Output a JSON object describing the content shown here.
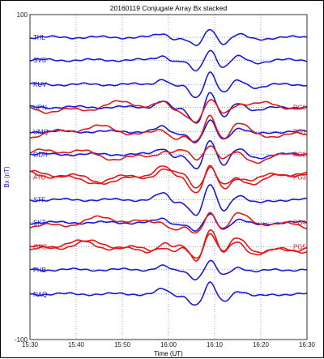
{
  "chart_data": {
    "type": "line",
    "title": "20160119 Conjugate Array Bx stacked",
    "xlabel": "Time (UT)",
    "ylabel": "Bx (nT)",
    "xlim": [
      "15:30",
      "16:30"
    ],
    "ylim": [
      -100,
      100
    ],
    "x_ticks": [
      "15:30",
      "15:40",
      "15:50",
      "16:00",
      "16:10",
      "16:20",
      "16:30"
    ],
    "y_ticks": [
      100,
      -100
    ],
    "grid": true,
    "colors": {
      "north": "#1a1ad6",
      "south": "#e01818"
    },
    "series": [
      {
        "name": "THL",
        "color": "#1a1ad6",
        "side": "left",
        "offset": 86
      },
      {
        "name": "SVS",
        "color": "#1a1ad6",
        "side": "left",
        "offset": 72
      },
      {
        "name": "KUV",
        "color": "#1a1ad6",
        "side": "left",
        "offset": 57
      },
      {
        "name": "UPN",
        "color": "#1a1ad6",
        "side": "left",
        "offset": 43
      },
      {
        "name": "PG0",
        "color": "#e01818",
        "side": "right",
        "offset": 43
      },
      {
        "name": "UMQ",
        "color": "#1a1ad6",
        "side": "left",
        "offset": 28
      },
      {
        "name": "PG1",
        "color": "#e01818",
        "side": "right",
        "offset": 28
      },
      {
        "name": "GDH",
        "color": "#1a1ad6",
        "side": "left",
        "offset": 14
      },
      {
        "name": "PG2",
        "color": "#e01818",
        "side": "right",
        "offset": 14
      },
      {
        "name": "ATU",
        "color": "#e01818",
        "side": "left",
        "offset": 0
      },
      {
        "name": "PG3",
        "color": "#e01818",
        "side": "right",
        "offset": 0
      },
      {
        "name": "STF",
        "color": "#1a1ad6",
        "side": "left",
        "offset": -14
      },
      {
        "name": "SKT",
        "color": "#1a1ad6",
        "side": "left",
        "offset": -28
      },
      {
        "name": "PG4",
        "color": "#e01818",
        "side": "right",
        "offset": -28
      },
      {
        "name": "GHB",
        "color": "#e01818",
        "side": "left",
        "offset": -43
      },
      {
        "name": "PG5",
        "color": "#e01818",
        "side": "right",
        "offset": -43
      },
      {
        "name": "FHB",
        "color": "#1a1ad6",
        "side": "left",
        "offset": -57
      },
      {
        "name": "NAQ",
        "color": "#1a1ad6",
        "side": "left",
        "offset": -72
      }
    ]
  }
}
